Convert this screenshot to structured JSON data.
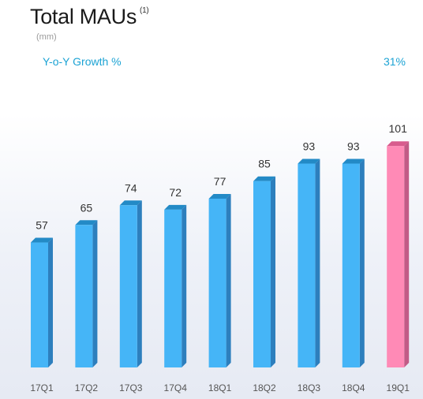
{
  "header": {
    "title": "Total MAUs",
    "footnote": "(1)",
    "unit": "(mm)",
    "growth_label": "Y-o-Y Growth %",
    "growth_value": "31%"
  },
  "chart_data": {
    "type": "bar",
    "title": "Total MAUs",
    "categories": [
      "17Q1",
      "17Q2",
      "17Q3",
      "17Q4",
      "18Q1",
      "18Q2",
      "18Q3",
      "18Q4",
      "19Q1"
    ],
    "values": [
      57,
      65,
      74,
      72,
      77,
      85,
      93,
      93,
      101
    ],
    "ylabel": "",
    "xlabel": "",
    "grid": false,
    "colors": {
      "default_front": "#45b5f7",
      "default_side": "#2d7fbd",
      "default_top": "#238ac6",
      "highlight_front": "#ff8ab6",
      "highlight_side": "#c25b86",
      "highlight_top": "#d85c8e",
      "highlight_category": "19Q1"
    }
  }
}
